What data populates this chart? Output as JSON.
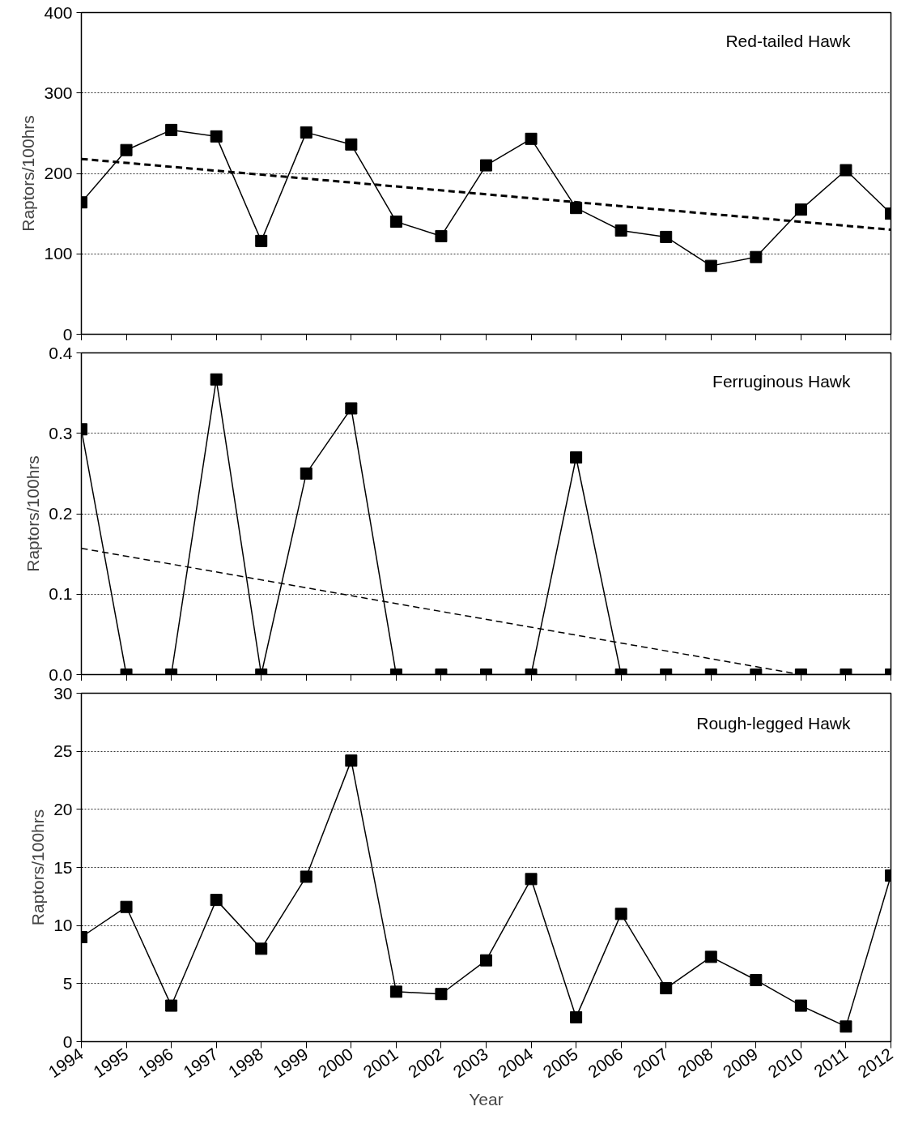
{
  "chart_data": [
    {
      "type": "line",
      "title": "Red-tailed Hawk",
      "ylabel": "Raptors/100hrs",
      "xlim": [
        1994,
        2012
      ],
      "xticks": [
        1994,
        1995,
        1996,
        1997,
        1998,
        1999,
        2000,
        2001,
        2002,
        2003,
        2004,
        2005,
        2006,
        2007,
        2008,
        2009,
        2010,
        2011,
        2012
      ],
      "ylim": [
        0,
        400
      ],
      "yticks": [
        0,
        100,
        200,
        300,
        400
      ],
      "grid": "y",
      "tick_labels": "y",
      "x": [
        1994,
        1995,
        1996,
        1997,
        1998,
        1999,
        2000,
        2001,
        2002,
        2003,
        2004,
        2005,
        2006,
        2007,
        2008,
        2009,
        2010,
        2011,
        2012
      ],
      "series": [
        {
          "color": "#000000",
          "marker": "square",
          "line_style": "solid",
          "values": [
            164,
            229,
            254,
            246,
            116,
            251,
            236,
            140,
            122,
            210,
            243,
            157,
            129,
            121,
            85,
            96,
            155,
            204,
            150
          ]
        },
        {
          "color": "#000000",
          "marker": "none",
          "line_style": "dashed",
          "x": [
            1994,
            2012
          ],
          "values": [
            218,
            130
          ]
        }
      ]
    },
    {
      "type": "line",
      "title": "Ferruginous Hawk",
      "ylabel": "Raptors/100hrs",
      "xlim": [
        1994,
        2012
      ],
      "xticks": [
        1994,
        1995,
        1996,
        1997,
        1998,
        1999,
        2000,
        2001,
        2002,
        2003,
        2004,
        2005,
        2006,
        2007,
        2008,
        2009,
        2010,
        2011,
        2012
      ],
      "ylim": [
        0,
        0.4
      ],
      "yticks": [
        {
          "value": 0,
          "label": "0.0"
        },
        0.1,
        0.2,
        0.3,
        0.4
      ],
      "grid": "y",
      "tick_labels": "y",
      "x": [
        1994,
        1995,
        1996,
        1997,
        1998,
        1999,
        2000,
        2001,
        2002,
        2003,
        2004,
        2005,
        2006,
        2007,
        2008,
        2009,
        2010,
        2011,
        2012
      ],
      "series": [
        {
          "color": "#000000",
          "marker": "square",
          "line_style": "solid",
          "values": [
            0.305,
            0,
            0,
            0.367,
            0,
            0.25,
            0.331,
            0,
            0,
            0,
            0,
            0.27,
            0,
            0,
            0,
            0,
            0,
            0,
            0
          ]
        },
        {
          "color": "#000000",
          "marker": "none",
          "line_style": "dashed",
          "x": [
            1994,
            2010
          ],
          "values": [
            0.157,
            0
          ]
        }
      ]
    },
    {
      "type": "line",
      "title": "Rough-legged Hawk",
      "ylabel": "Raptors/100hrs",
      "xlabel": "Year",
      "xlim": [
        1994,
        2012
      ],
      "xticks": [
        1994,
        1995,
        1996,
        1997,
        1998,
        1999,
        2000,
        2001,
        2002,
        2003,
        2004,
        2005,
        2006,
        2007,
        2008,
        2009,
        2010,
        2011,
        2012
      ],
      "ylim": [
        0,
        30
      ],
      "yticks": [
        0,
        5,
        10,
        15,
        20,
        25,
        30
      ],
      "grid": "y",
      "x": [
        1994,
        1995,
        1996,
        1997,
        1998,
        1999,
        2000,
        2001,
        2002,
        2003,
        2004,
        2005,
        2006,
        2007,
        2008,
        2009,
        2010,
        2011,
        2012
      ],
      "series": [
        {
          "color": "#000000",
          "marker": "square",
          "line_style": "solid",
          "values": [
            9,
            11.6,
            3.1,
            12.2,
            8,
            14.2,
            24.2,
            4.3,
            4.1,
            7,
            14,
            2.1,
            11,
            4.6,
            7.3,
            5.3,
            3.1,
            1.3,
            14.3
          ]
        }
      ]
    }
  ]
}
